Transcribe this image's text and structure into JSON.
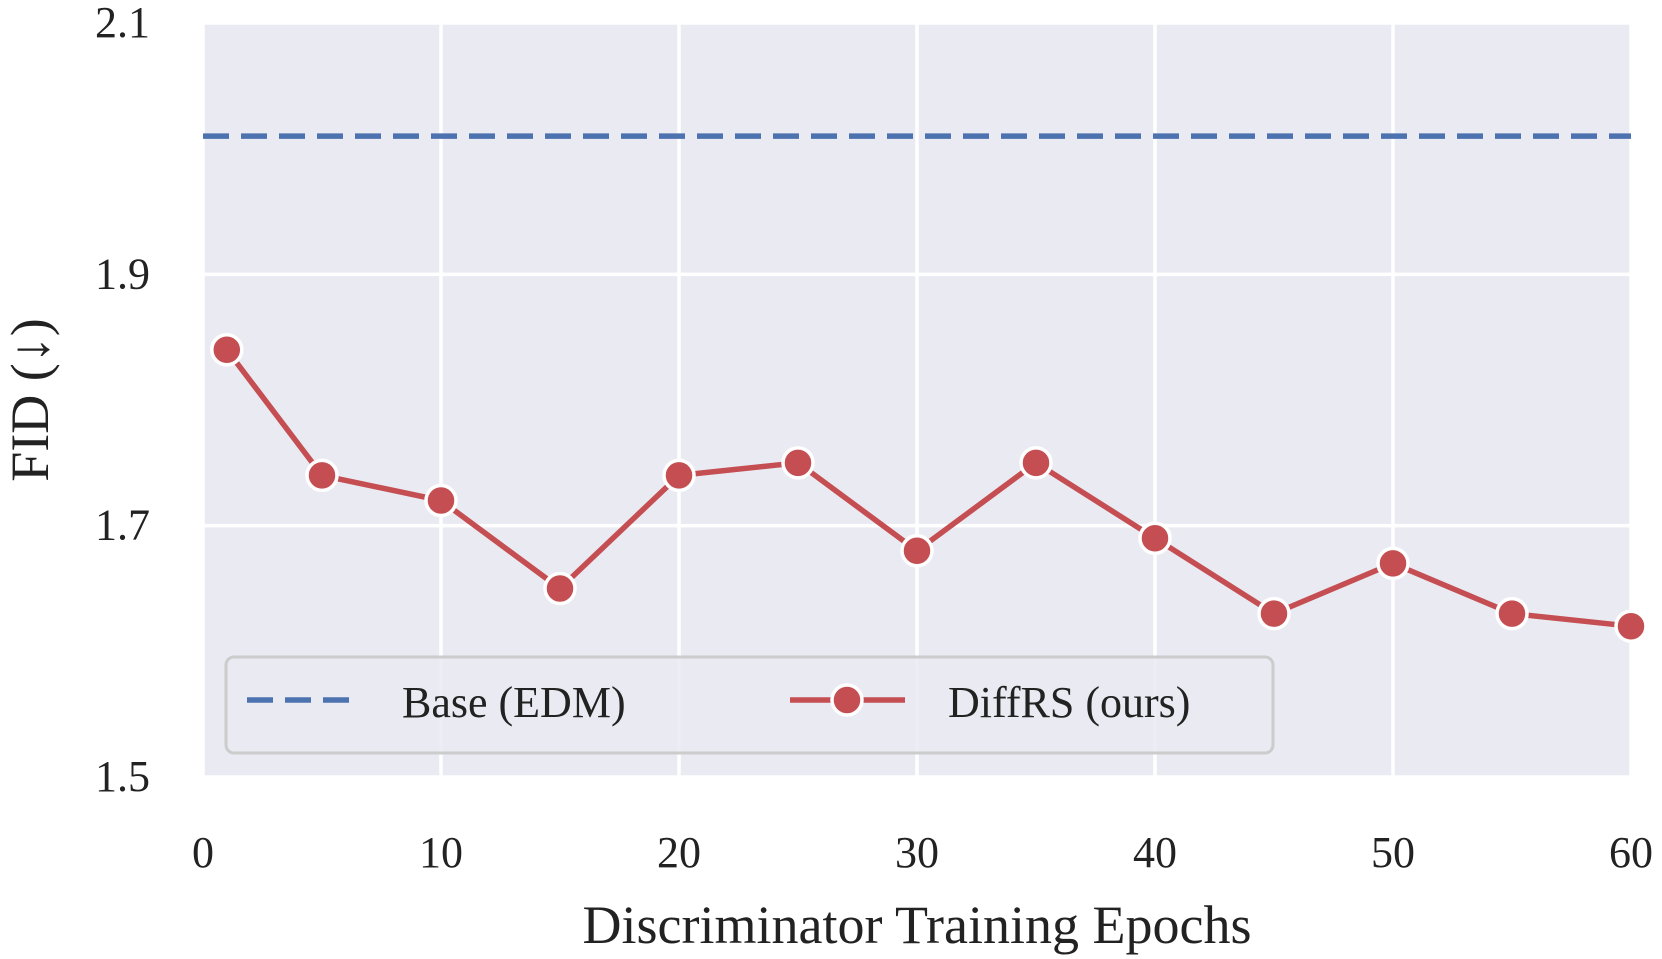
{
  "chart_data": {
    "type": "line",
    "title": "",
    "xlabel": "Discriminator Training Epochs",
    "ylabel": "FID (↓)",
    "xlim": [
      0,
      60
    ],
    "ylim": [
      1.5,
      2.1
    ],
    "xticks": [
      0,
      10,
      20,
      30,
      40,
      50,
      60
    ],
    "xtick_labels": [
      "0",
      "10",
      "20",
      "30",
      "40",
      "50",
      "60"
    ],
    "yticks": [
      1.5,
      1.7,
      1.9,
      2.1
    ],
    "ytick_labels": [
      "1.5",
      "1.7",
      "1.9",
      "2.1"
    ],
    "grid": true,
    "legend_position": "lower-left",
    "series": [
      {
        "name": "Base (EDM)",
        "style": "dashed",
        "marker": "none",
        "color": "#4c72b0",
        "x": [
          0,
          60
        ],
        "values": [
          2.01,
          2.01
        ]
      },
      {
        "name": "DiffRS (ours)",
        "style": "solid",
        "marker": "circle",
        "color": "#c44e52",
        "x": [
          1,
          5,
          10,
          15,
          20,
          25,
          30,
          35,
          40,
          45,
          50,
          55,
          60
        ],
        "values": [
          1.84,
          1.74,
          1.72,
          1.65,
          1.74,
          1.75,
          1.68,
          1.75,
          1.69,
          1.63,
          1.67,
          1.63,
          1.62
        ]
      }
    ]
  },
  "colors": {
    "plot_background": "#eaeaf2",
    "grid": "#ffffff",
    "text": "#222222"
  }
}
